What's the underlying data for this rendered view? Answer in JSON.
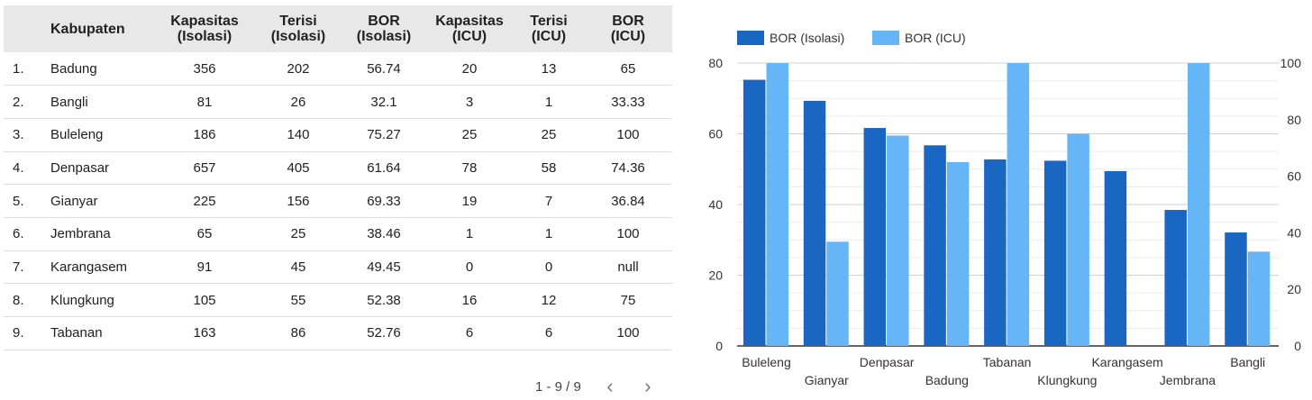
{
  "table": {
    "headers": {
      "index": "",
      "kabupaten": "Kabupaten",
      "kap_iso": [
        "Kapasitas",
        "(Isolasi)"
      ],
      "ter_iso": [
        "Terisi",
        "(Isolasi)"
      ],
      "bor_iso": [
        "BOR",
        "(Isolasi)"
      ],
      "kap_icu": [
        "Kapasitas",
        "(ICU)"
      ],
      "ter_icu": [
        "Terisi",
        "(ICU)"
      ],
      "bor_icu": [
        "BOR",
        "(ICU)"
      ]
    },
    "rows": [
      {
        "idx": "1.",
        "name": "Badung",
        "kap_iso": "356",
        "ter_iso": "202",
        "bor_iso": "56.74",
        "kap_icu": "20",
        "ter_icu": "13",
        "bor_icu": "65"
      },
      {
        "idx": "2.",
        "name": "Bangli",
        "kap_iso": "81",
        "ter_iso": "26",
        "bor_iso": "32.1",
        "kap_icu": "3",
        "ter_icu": "1",
        "bor_icu": "33.33"
      },
      {
        "idx": "3.",
        "name": "Buleleng",
        "kap_iso": "186",
        "ter_iso": "140",
        "bor_iso": "75.27",
        "kap_icu": "25",
        "ter_icu": "25",
        "bor_icu": "100"
      },
      {
        "idx": "4.",
        "name": "Denpasar",
        "kap_iso": "657",
        "ter_iso": "405",
        "bor_iso": "61.64",
        "kap_icu": "78",
        "ter_icu": "58",
        "bor_icu": "74.36"
      },
      {
        "idx": "5.",
        "name": "Gianyar",
        "kap_iso": "225",
        "ter_iso": "156",
        "bor_iso": "69.33",
        "kap_icu": "19",
        "ter_icu": "7",
        "bor_icu": "36.84"
      },
      {
        "idx": "6.",
        "name": "Jembrana",
        "kap_iso": "65",
        "ter_iso": "25",
        "bor_iso": "38.46",
        "kap_icu": "1",
        "ter_icu": "1",
        "bor_icu": "100"
      },
      {
        "idx": "7.",
        "name": "Karangasem",
        "kap_iso": "91",
        "ter_iso": "45",
        "bor_iso": "49.45",
        "kap_icu": "0",
        "ter_icu": "0",
        "bor_icu": "null"
      },
      {
        "idx": "8.",
        "name": "Klungkung",
        "kap_iso": "105",
        "ter_iso": "55",
        "bor_iso": "52.38",
        "kap_icu": "16",
        "ter_icu": "12",
        "bor_icu": "75"
      },
      {
        "idx": "9.",
        "name": "Tabanan",
        "kap_iso": "163",
        "ter_iso": "86",
        "bor_iso": "52.76",
        "kap_icu": "6",
        "ter_icu": "6",
        "bor_icu": "100"
      }
    ]
  },
  "pager": {
    "range": "1 - 9 / 9",
    "prev_icon": "chevron-left-icon",
    "next_icon": "chevron-right-icon"
  },
  "chart_data": {
    "type": "bar",
    "title": "",
    "categories": [
      "Buleleng",
      "Gianyar",
      "Denpasar",
      "Badung",
      "Tabanan",
      "Klungkung",
      "Karangasem",
      "Jembrana",
      "Bangli"
    ],
    "series": [
      {
        "name": "BOR (Isolasi)",
        "axis": "left",
        "color": "#1a67c3",
        "values": [
          75.27,
          69.33,
          61.64,
          56.74,
          52.76,
          52.38,
          49.45,
          38.46,
          32.1
        ]
      },
      {
        "name": "BOR (ICU)",
        "axis": "right",
        "color": "#66b6f7",
        "values": [
          100,
          36.84,
          74.36,
          65,
          100,
          75,
          null,
          100,
          33.33
        ]
      }
    ],
    "left_axis": {
      "min": 0,
      "max": 80,
      "ticks": [
        0,
        20,
        40,
        60,
        80
      ]
    },
    "right_axis": {
      "min": 0,
      "max": 100,
      "ticks": [
        0,
        20,
        40,
        60,
        80,
        100
      ]
    },
    "xlabel": "",
    "ylabel": "",
    "legend": "top-left",
    "grid": true
  }
}
